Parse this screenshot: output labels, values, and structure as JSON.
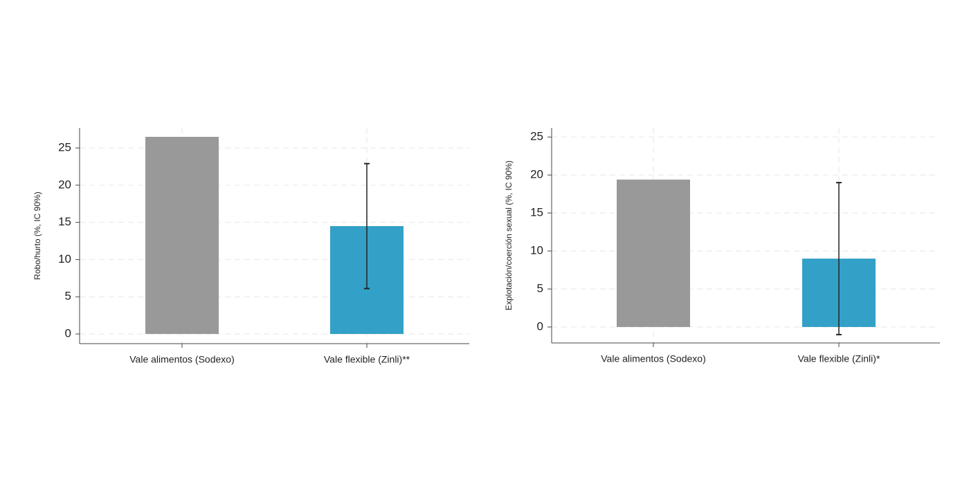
{
  "chart_data": [
    {
      "type": "bar",
      "y_label": "Robo/hurto (%, IC 90%)",
      "categories": [
        "Vale alimentos (Sodexo)",
        "Vale flexible (Zinli)**"
      ],
      "values": [
        26.5,
        14.5
      ],
      "ci_low": [
        null,
        6.1
      ],
      "ci_high": [
        null,
        22.9
      ],
      "colors": [
        "#999999",
        "#33a0c8"
      ],
      "ylim": [
        -1.3,
        27.7
      ],
      "yticks": [
        0,
        5,
        10,
        15,
        20,
        25
      ],
      "grid": true
    },
    {
      "type": "bar",
      "y_label": "Explotación/coerción sexual (%, IC 90%)",
      "categories": [
        "Vale alimentos (Sodexo)",
        "Vale flexible (Zinli)*"
      ],
      "values": [
        19.4,
        9.0
      ],
      "ci_low": [
        null,
        -1.0
      ],
      "ci_high": [
        null,
        19.0
      ],
      "colors": [
        "#999999",
        "#33a0c8"
      ],
      "ylim": [
        -2.1,
        26.2
      ],
      "yticks": [
        0,
        5,
        10,
        15,
        20,
        25
      ],
      "grid": true
    }
  ]
}
